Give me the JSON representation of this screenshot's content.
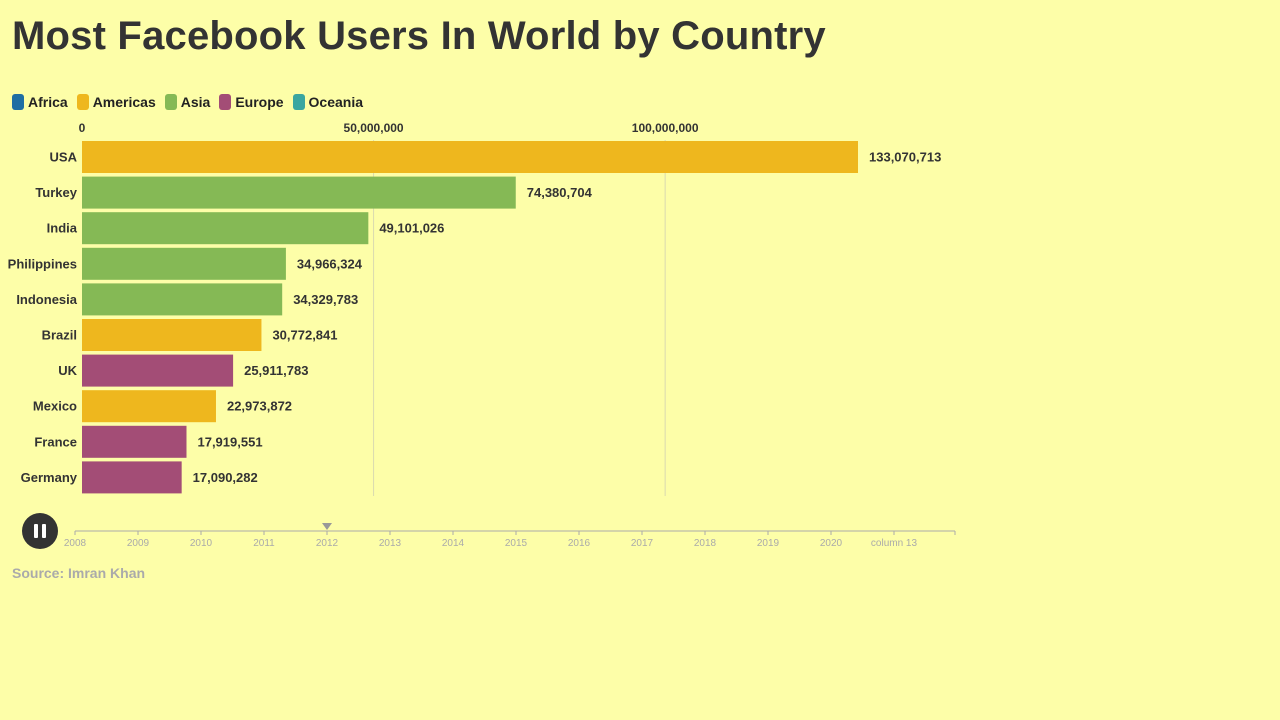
{
  "title": "Most Facebook Users In World by Country",
  "source": "Source: Imran Khan",
  "colors": {
    "background": "#fdfea8",
    "Africa": "#1f6ea3",
    "Americas": "#eeb71e",
    "Asia": "#85b955",
    "Europe": "#a34d76",
    "Oceania": "#3aa6a0"
  },
  "legend": [
    {
      "label": "Africa",
      "color": "#1f6ea3"
    },
    {
      "label": "Americas",
      "color": "#eeb71e"
    },
    {
      "label": "Asia",
      "color": "#85b955"
    },
    {
      "label": "Europe",
      "color": "#a34d76"
    },
    {
      "label": "Oceania",
      "color": "#3aa6a0"
    }
  ],
  "timeline": {
    "labels": [
      "2008",
      "2009",
      "2010",
      "2011",
      "2012",
      "2013",
      "2014",
      "2015",
      "2016",
      "2017",
      "2018",
      "2019",
      "2020",
      "column 13"
    ],
    "current": "2012",
    "state": "playing",
    "pause_icon": "pause-icon"
  },
  "chart_data": {
    "type": "bar",
    "orientation": "horizontal",
    "title": "Most Facebook Users In World by Country",
    "xlabel": "",
    "ylabel": "",
    "xlim": [
      0,
      133070713
    ],
    "x_ticks": [
      {
        "value": 0,
        "label": "0"
      },
      {
        "value": 50000000,
        "label": "50,000,000"
      },
      {
        "value": 100000000,
        "label": "100,000,000"
      }
    ],
    "grid": true,
    "legend_position": "top-left",
    "categories": [
      "USA",
      "Turkey",
      "India",
      "Philippines",
      "Indonesia",
      "Brazil",
      "UK",
      "Mexico",
      "France",
      "Germany"
    ],
    "values": [
      133070713,
      74380704,
      49101026,
      34966324,
      34329783,
      30772841,
      25911783,
      22973872,
      17919551,
      17090282
    ],
    "value_labels": [
      "133,070,713",
      "74,380,704",
      "49,101,026",
      "34,966,324",
      "34,329,783",
      "30,772,841",
      "25,911,783",
      "22,973,872",
      "17,919,551",
      "17,090,282"
    ],
    "groups": [
      "Americas",
      "Asia",
      "Asia",
      "Asia",
      "Asia",
      "Americas",
      "Europe",
      "Americas",
      "Europe",
      "Europe"
    ]
  }
}
